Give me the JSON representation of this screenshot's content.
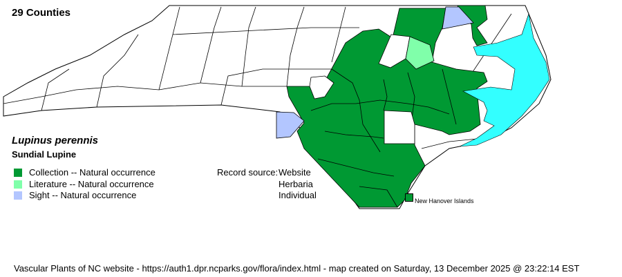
{
  "header": {
    "county_count": "29 Counties"
  },
  "species": {
    "scientific_name": "Lupinus perennis",
    "common_name": "Sundial Lupine"
  },
  "legend": [
    {
      "label": "Collection -- Natural occurrence",
      "color": "#009933"
    },
    {
      "label": "Literature -- Natural occurrence",
      "color": "#80ffaa"
    },
    {
      "label": "Sight -- Natural occurrence",
      "color": "#b3c6ff"
    }
  ],
  "record_source": {
    "label": "Record source:",
    "values": [
      "Website",
      "Herbaria",
      "Individual"
    ]
  },
  "island_label": "New Hanover Islands",
  "water_color": "#33ffff",
  "footer": "Vascular Plants of NC website - https://auth1.dpr.ncparks.gov/flora/index.html - map created on Saturday, 13 December 2025 @ 23:22:14 EST"
}
